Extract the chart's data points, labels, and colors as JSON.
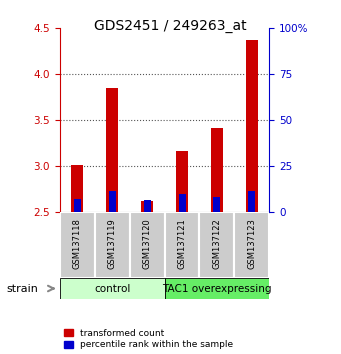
{
  "title": "GDS2451 / 249263_at",
  "samples": [
    "GSM137118",
    "GSM137119",
    "GSM137120",
    "GSM137121",
    "GSM137122",
    "GSM137123"
  ],
  "red_values": [
    3.02,
    3.85,
    2.62,
    3.17,
    3.42,
    4.37
  ],
  "blue_values": [
    2.65,
    2.73,
    2.64,
    2.7,
    2.67,
    2.73
  ],
  "bar_base": 2.5,
  "ylim": [
    2.5,
    4.5
  ],
  "yticks": [
    2.5,
    3.0,
    3.5,
    4.0,
    4.5
  ],
  "right_yticks": [
    0,
    25,
    50,
    75,
    100
  ],
  "right_ylabels": [
    "0",
    "25",
    "50",
    "75",
    "100%"
  ],
  "red_color": "#cc0000",
  "blue_color": "#0000cc",
  "bar_width": 0.35,
  "blue_bar_width": 0.2,
  "control_label": "control",
  "tac1_label": "TAC1 overexpressing",
  "strain_label": "strain",
  "legend_red": "transformed count",
  "legend_blue": "percentile rank within the sample",
  "control_color": "#ccffcc",
  "tac1_color": "#66ee66",
  "sample_box_color": "#cccccc",
  "title_color": "#000000",
  "tick_color_left": "#cc0000",
  "tick_color_right": "#0000cc",
  "grid_color": "#555555"
}
